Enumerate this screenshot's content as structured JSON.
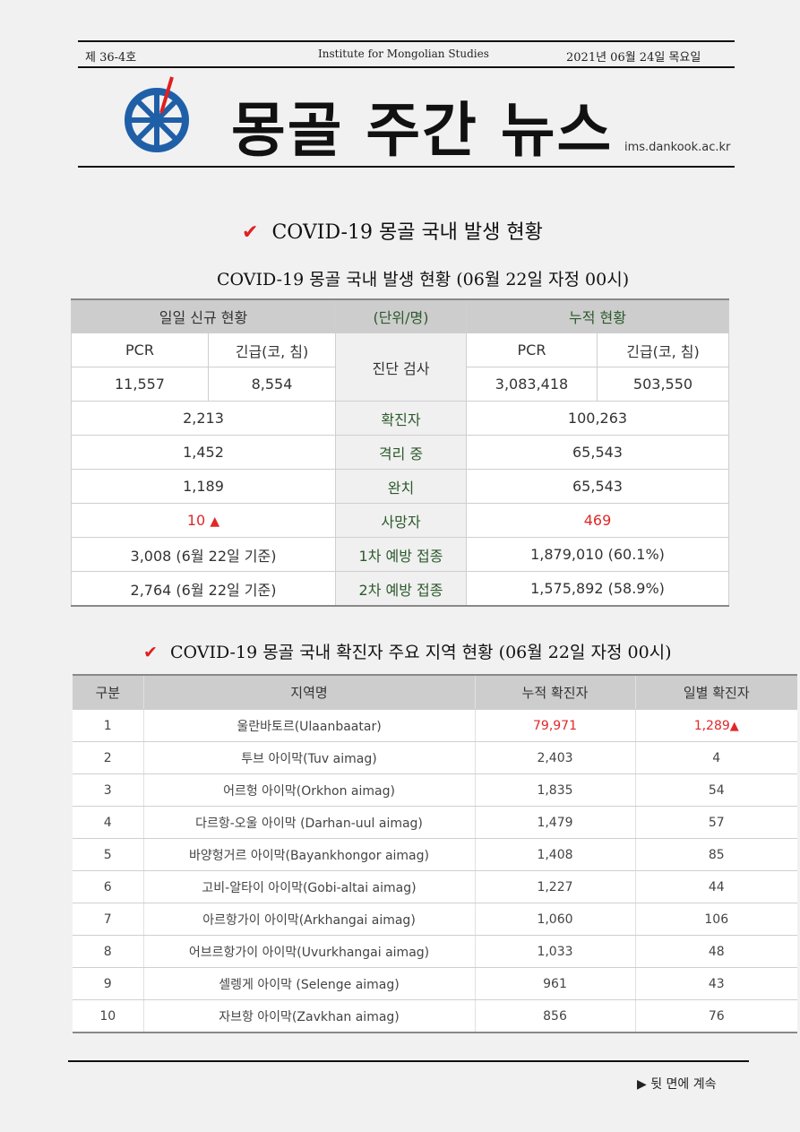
{
  "header": {
    "issue": "제 36-4호",
    "institute": "Institute for Mongolian Studies",
    "date": "2021년 06월 24일 목요일",
    "title": "몽골 주간 뉴스",
    "site": "ims.dankook.ac.kr"
  },
  "section1": {
    "heading": "COVID-19 몽골 국내 발생 현황",
    "table_title": "COVID-19 몽골 국내 발생 현황 (06월 22일 자정 00시)",
    "head_left": "일일 신규 현황",
    "head_mid": "(단위/명)",
    "head_right": "누적 현황",
    "sub_pcr": "PCR",
    "sub_rapid": "긴급(코, 침)",
    "test_label": "진단 검사",
    "daily_pcr": "11,557",
    "daily_rapid": "8,554",
    "total_pcr": "3,083,418",
    "total_rapid": "503,550",
    "rows": [
      {
        "daily": "2,213",
        "label": "확진자",
        "total": "100,263"
      },
      {
        "daily": "1,452",
        "label": "격리 중",
        "total": "65,543"
      },
      {
        "daily": "1,189",
        "label": "완치",
        "total": "65,543"
      },
      {
        "daily": "10",
        "label": "사망자",
        "total": "469"
      },
      {
        "daily": "3,008 (6월 22일 기준)",
        "label": "1차 예방 접종",
        "total": "1,879,010 (60.1%)"
      },
      {
        "daily": "2,764 (6월 22일 기준)",
        "label": "2차 예방 접종",
        "total": "1,575,892 (58.9%)"
      }
    ],
    "up_mark": "▲"
  },
  "section2": {
    "heading": "COVID-19 몽골 국내 확진자 주요 지역 현황 (06월 22일 자정 00시)",
    "headers": [
      "구분",
      "지역명",
      "누적 확진자",
      "일별 확진자"
    ],
    "rows": [
      {
        "no": "1",
        "region": "울란바토르(Ulaanbaatar)",
        "total": "79,971",
        "daily": "1,289"
      },
      {
        "no": "2",
        "region": "투브 아이막(Tuv aimag)",
        "total": "2,403",
        "daily": "4"
      },
      {
        "no": "3",
        "region": "어르헝 아이막(Orkhon aimag)",
        "total": "1,835",
        "daily": "54"
      },
      {
        "no": "4",
        "region": "다르항-오울 아이막 (Darhan-uul aimag)",
        "total": "1,479",
        "daily": "57"
      },
      {
        "no": "5",
        "region": "바양헝거르 아이막(Bayankhongor aimag)",
        "total": "1,408",
        "daily": "85"
      },
      {
        "no": "6",
        "region": "고비-알타이 아이막(Gobi-altai aimag)",
        "total": "1,227",
        "daily": "44"
      },
      {
        "no": "7",
        "region": "아르항가이 아이막(Arkhangai aimag)",
        "total": "1,060",
        "daily": "106"
      },
      {
        "no": "8",
        "region": "어브르항가이 아이막(Uvurkhangai aimag)",
        "total": "1,033",
        "daily": "48"
      },
      {
        "no": "9",
        "region": "셀렝게 아이막 (Selenge aimag)",
        "total": "961",
        "daily": "43"
      },
      {
        "no": "10",
        "region": "자브항 아이막(Zavkhan aimag)",
        "total": "856",
        "daily": "76"
      }
    ],
    "up_mark": "▲"
  },
  "footer": {
    "note": "▶ 뒷 면에 계속"
  },
  "icons": {
    "logo": "dharma-wheel-logo",
    "check": "check-mark-icon"
  },
  "colors": {
    "accent_red": "#e02828",
    "label_green": "#2c5a2c",
    "header_gray": "#cdcdcd"
  }
}
